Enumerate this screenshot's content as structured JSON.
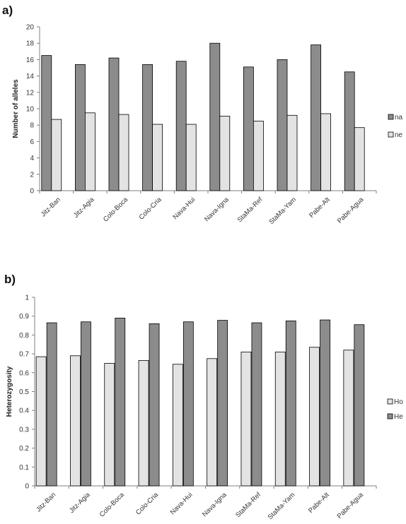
{
  "chart_data": [
    {
      "panel": "a)",
      "type": "bar",
      "ylabel": "Number of alleles",
      "ylim": [
        0,
        20
      ],
      "yticks": [
        "0",
        "2",
        "4",
        "6",
        "8",
        "10",
        "12",
        "14",
        "16",
        "18",
        "20"
      ],
      "categories": [
        "Jitz-Ban",
        "Jitz-Agia",
        "Colo-Boca",
        "Colo-Cria",
        "Nava-Hui",
        "Nava-Igna",
        "StaMa-Ref",
        "StaMa-Yam",
        "Pabe-Alt",
        "Pabe-Agua"
      ],
      "series": [
        {
          "name": "na",
          "color": "#8c8c8c",
          "values": [
            16.5,
            15.4,
            16.2,
            15.4,
            15.8,
            18.0,
            15.1,
            16.0,
            17.8,
            14.5
          ]
        },
        {
          "name": "ne",
          "color": "#e3e3e3",
          "values": [
            8.7,
            9.5,
            9.3,
            8.1,
            8.1,
            9.1,
            8.5,
            9.2,
            9.4,
            7.7
          ]
        }
      ],
      "grid": false,
      "legend": "right"
    },
    {
      "panel": "b)",
      "type": "bar",
      "ylabel": "Heterozygosity",
      "ylim": [
        0,
        1
      ],
      "yticks": [
        "0",
        "0.1",
        "0.2",
        "0.3",
        "0.4",
        "0.5",
        "0.6",
        "0.7",
        "0.8",
        "0.9",
        "1"
      ],
      "categories": [
        "Jitz-Ban",
        "Jitz-Agia",
        "Colo-Boca",
        "Colo-Cria",
        "Nava-Hui",
        "Nava-Igna",
        "StaMa-Ref",
        "StaMa-Yam",
        "Pabe-Alt",
        "Pabe-Agua"
      ],
      "series": [
        {
          "name": "Ho",
          "color": "#e3e3e3",
          "values": [
            0.685,
            0.69,
            0.65,
            0.665,
            0.645,
            0.675,
            0.71,
            0.71,
            0.735,
            0.72
          ]
        },
        {
          "name": "He",
          "color": "#8c8c8c",
          "values": [
            0.865,
            0.87,
            0.89,
            0.86,
            0.87,
            0.878,
            0.865,
            0.875,
            0.88,
            0.855
          ]
        }
      ],
      "grid": false,
      "legend": "right"
    }
  ]
}
